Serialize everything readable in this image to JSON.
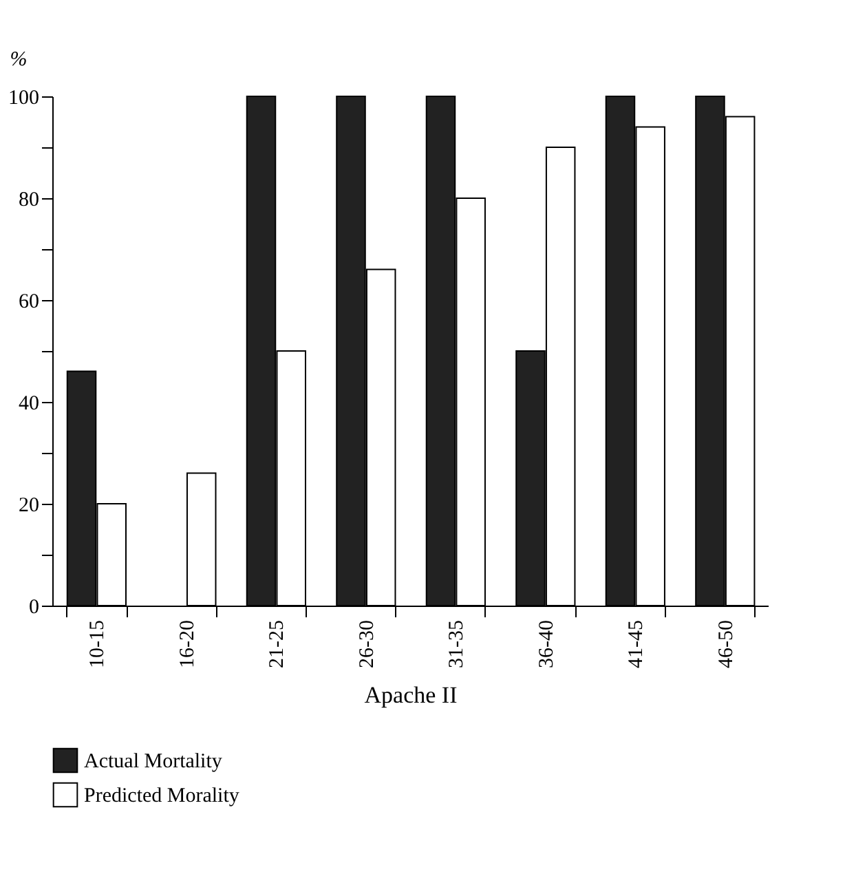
{
  "chart_data": {
    "type": "bar",
    "ylabel": "%",
    "xlabel": "Apache II",
    "categories": [
      "10-15",
      "16-20",
      "21-25",
      "26-30",
      "31-35",
      "36-40",
      "41-45",
      "46-50"
    ],
    "series": [
      {
        "name": "Actual Mortality",
        "color": "#222222",
        "values": [
          46,
          0,
          100,
          100,
          100,
          50,
          100,
          100
        ]
      },
      {
        "name": "Predicted Morality",
        "color": "#ffffff",
        "values": [
          20,
          26,
          50,
          66,
          80,
          90,
          94,
          96
        ]
      }
    ],
    "ylim": [
      0,
      100
    ],
    "yticks": [
      0,
      {
        "value": 10,
        "label": null
      },
      20,
      {
        "value": 30,
        "label": null
      },
      40,
      {
        "value": 50,
        "label": null
      },
      60,
      {
        "value": 70,
        "label": null
      },
      80,
      {
        "value": 90,
        "label": null
      },
      100
    ],
    "grid": false,
    "legend": "bottom left"
  }
}
